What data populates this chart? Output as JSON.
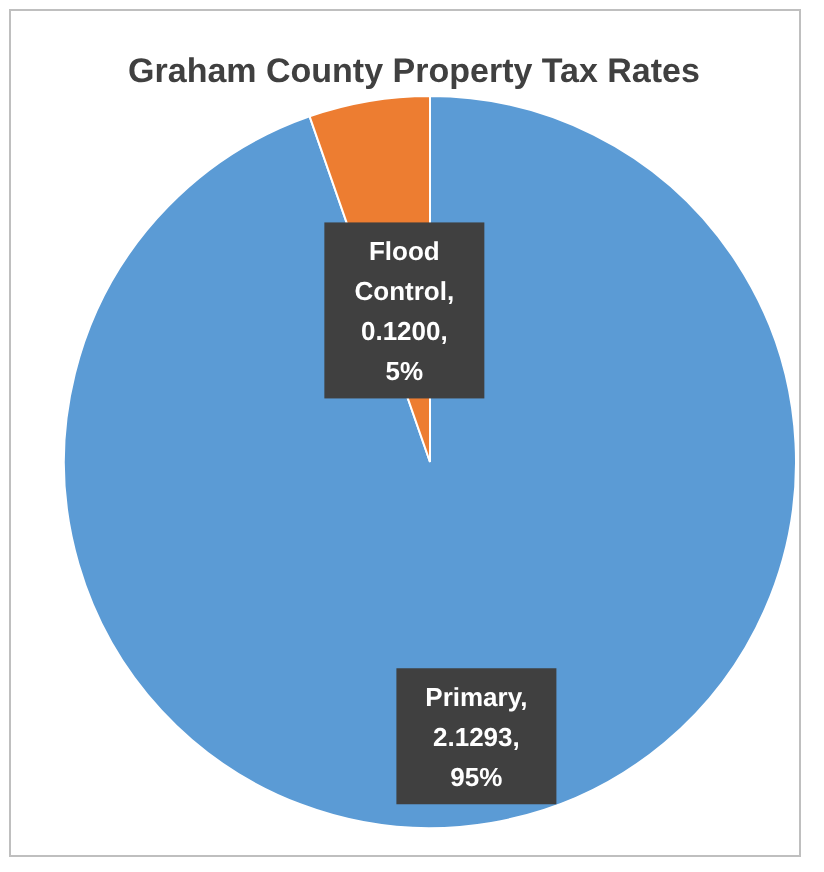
{
  "chart_data": {
    "type": "pie",
    "title": "Graham County Property Tax Rates",
    "categories": [
      "Primary",
      "Flood Control"
    ],
    "values": [
      2.1293,
      0.12
    ],
    "colors": [
      "#5b9bd5",
      "#ed7d31"
    ],
    "value_labels": [
      ", 2.1293, 95%",
      ", 0.1200, 5%"
    ]
  }
}
